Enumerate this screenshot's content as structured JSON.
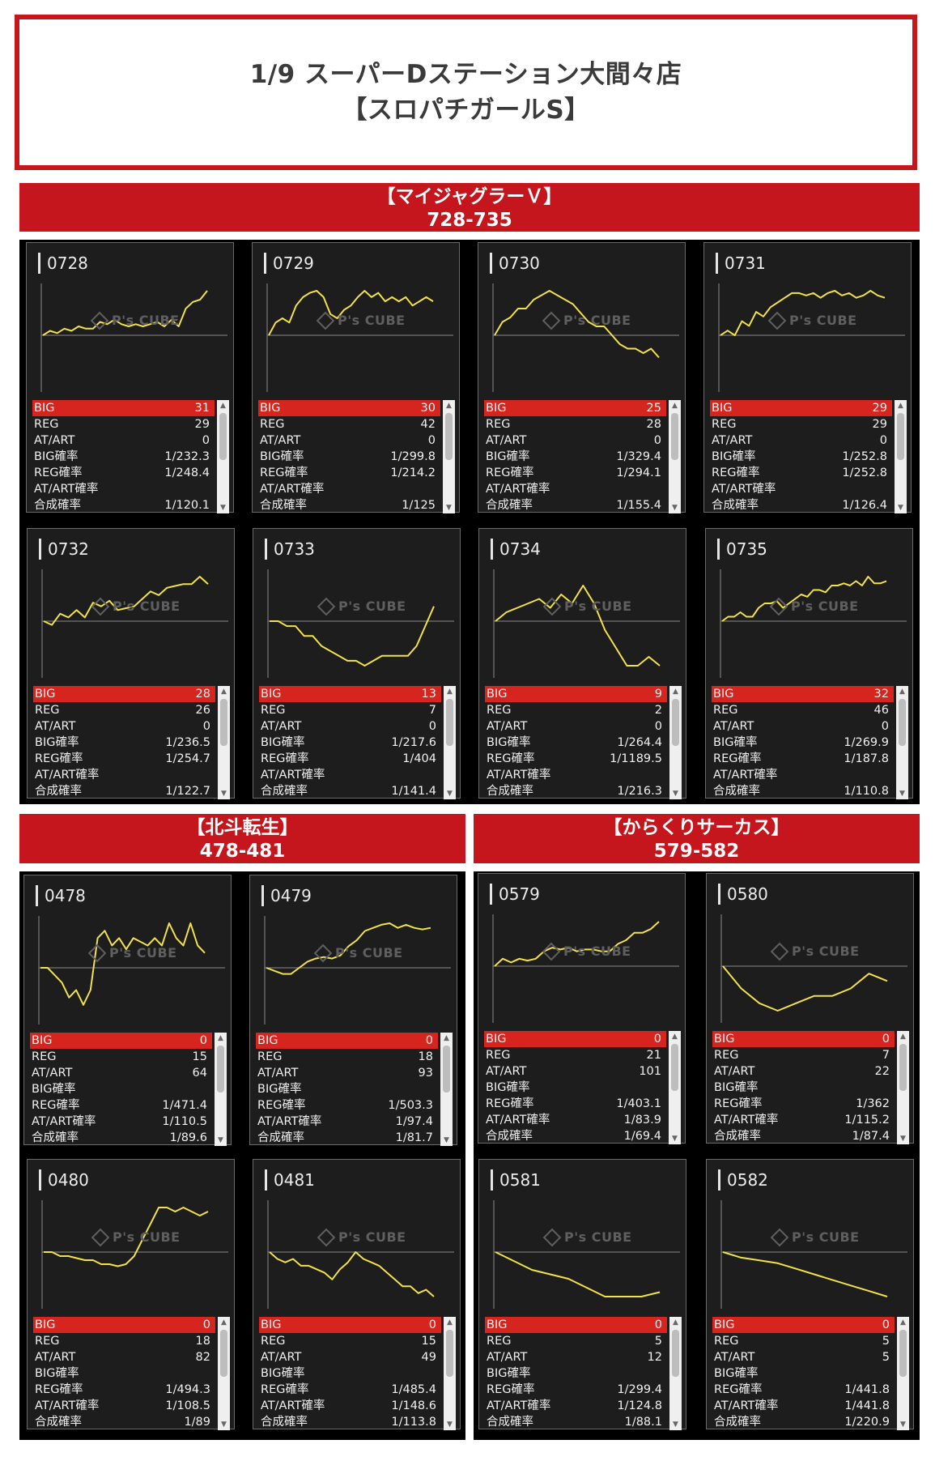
{
  "page_title": {
    "line1": "1/9 スーパーDステーション大間々店",
    "line2": "【スロパチガールS】"
  },
  "stat_labels": [
    "BIG",
    "REG",
    "AT/ART",
    "BIG確率",
    "REG確率",
    "AT/ART確率",
    "合成確率"
  ],
  "watermark": "P's CUBE",
  "colors": {
    "accent": "#c4161c",
    "big_row": "#d6251f",
    "chart_line": "#f2e24a",
    "panel_bg": "#1d1d1d"
  },
  "sections": [
    {
      "name": "【マイジャグラーＶ】",
      "range": "728-735",
      "machines": [
        {
          "number": "0728",
          "stats": [
            "31",
            "29",
            "0",
            "1/232.3",
            "1/248.4",
            "",
            "1/120.1"
          ],
          "graph": [
            0,
            1,
            0.5,
            1.5,
            1,
            2,
            1.5,
            1.5,
            3,
            2.5,
            3.5,
            2.5,
            2,
            2.5,
            2,
            2.5,
            3,
            2,
            3.5,
            2,
            6,
            7.5,
            8,
            10
          ]
        },
        {
          "number": "0729",
          "stats": [
            "30",
            "42",
            "0",
            "1/299.8",
            "1/214.2",
            "",
            "1/125"
          ],
          "graph": [
            0,
            3,
            4,
            3,
            7,
            9,
            10,
            10.5,
            9,
            5,
            4,
            6,
            7,
            9,
            10.5,
            9,
            10,
            8,
            9,
            8,
            9,
            7,
            8,
            9,
            8
          ]
        },
        {
          "number": "0730",
          "stats": [
            "25",
            "28",
            "0",
            "1/329.4",
            "1/294.1",
            "",
            "1/155.4"
          ],
          "graph": [
            0,
            3,
            4,
            6,
            6,
            8,
            9,
            10,
            9,
            8,
            7,
            5,
            3,
            2,
            2,
            0,
            -2,
            -3,
            -3,
            -4,
            -3,
            -5
          ]
        },
        {
          "number": "0731",
          "stats": [
            "29",
            "29",
            "0",
            "1/252.8",
            "1/252.8",
            "",
            "1/126.4"
          ],
          "graph": [
            0,
            1,
            0,
            3,
            2,
            5,
            4,
            6,
            7,
            8,
            9,
            9,
            8.5,
            9,
            8,
            9,
            9.5,
            8.5,
            9,
            8,
            8.5,
            9.5,
            8.5,
            8
          ]
        }
      ]
    },
    {
      "name": "【マイジャグラーＶ】",
      "range": "728-735",
      "machines": [
        {
          "number": "0732",
          "stats": [
            "28",
            "26",
            "0",
            "1/236.5",
            "1/254.7",
            "",
            "1/122.7"
          ],
          "graph": [
            0,
            -1,
            2,
            1,
            3,
            1,
            5,
            4,
            5.5,
            3,
            3.5,
            4,
            6,
            8,
            7,
            9,
            9.5,
            10,
            10,
            12,
            10
          ]
        },
        {
          "number": "0733",
          "stats": [
            "13",
            "7",
            "0",
            "1/217.6",
            "1/404",
            "",
            "1/141.4"
          ],
          "graph": [
            0,
            0,
            -1,
            -1,
            -3,
            -3,
            -5,
            -6,
            -7,
            -8,
            -8,
            -9,
            -8,
            -7,
            -7,
            -7,
            -7,
            -5,
            -1,
            3
          ]
        },
        {
          "number": "0734",
          "stats": [
            "9",
            "2",
            "0",
            "1/264.4",
            "1/1189.5",
            "",
            "1/216.3"
          ],
          "graph": [
            0,
            1,
            1.5,
            2,
            2.5,
            1.5,
            3,
            2,
            4,
            2,
            -1,
            -3,
            -5,
            -5,
            -4,
            -5
          ]
        },
        {
          "number": "0735",
          "stats": [
            "32",
            "46",
            "0",
            "1/269.9",
            "1/187.8",
            "",
            "1/110.8"
          ],
          "graph": [
            0,
            1,
            1,
            2,
            1,
            1,
            3,
            4,
            4,
            4.5,
            3,
            4,
            5,
            6,
            5.5,
            7,
            7,
            6.5,
            8,
            8,
            8.5,
            8,
            9,
            8,
            10,
            8.5,
            8.5,
            9
          ]
        }
      ]
    },
    {
      "name": "【北斗転生】",
      "range": "478-481",
      "machines": [
        {
          "number": "0478",
          "stats": [
            "0",
            "15",
            "64",
            "",
            "1/471.4",
            "1/110.5",
            "1/89.6"
          ],
          "graph": [
            0,
            0,
            -1,
            -2,
            -4,
            -3,
            -5,
            -3,
            4,
            5,
            3,
            4,
            2.5,
            4,
            3.5,
            3,
            4,
            3,
            6,
            4,
            3,
            6,
            3,
            2
          ]
        },
        {
          "number": "0479",
          "stats": [
            "0",
            "18",
            "93",
            "",
            "1/503.3",
            "1/97.4",
            "1/81.7"
          ],
          "graph": [
            0,
            -1,
            -2,
            -2,
            0,
            2,
            3,
            3.5,
            3,
            4,
            7,
            9,
            12,
            13,
            14,
            14.5,
            13,
            14,
            13,
            12.5,
            13
          ]
        },
        {
          "number": "0480",
          "stats": [
            "0",
            "18",
            "82",
            "",
            "1/494.3",
            "1/108.5",
            "1/89"
          ],
          "graph": [
            0,
            0,
            -1,
            -1,
            -1.5,
            -2,
            -2,
            -3,
            -3,
            -3.5,
            -3,
            -1,
            3,
            7,
            11,
            11,
            10,
            11,
            10,
            9,
            10
          ]
        },
        {
          "number": "0481",
          "stats": [
            "0",
            "15",
            "49",
            "",
            "1/485.4",
            "1/148.6",
            "1/113.8"
          ],
          "graph": [
            0,
            -2,
            -3,
            -2,
            -4,
            -4,
            -5,
            -6,
            -8,
            -5,
            -3,
            0,
            -2,
            -3,
            -4,
            -6,
            -8,
            -10,
            -10,
            -12,
            -11,
            -13
          ]
        }
      ]
    },
    {
      "name": "【からくりサーカス】",
      "range": "579-582",
      "machines": [
        {
          "number": "0579",
          "stats": [
            "0",
            "21",
            "101",
            "",
            "1/403.1",
            "1/83.9",
            "1/69.4"
          ],
          "graph": [
            0,
            2,
            1,
            2,
            1.5,
            2,
            4,
            5,
            4.5,
            5,
            4,
            4.5,
            4.5,
            4,
            4,
            6,
            7,
            9,
            9,
            10,
            12
          ]
        },
        {
          "number": "0580",
          "stats": [
            "0",
            "7",
            "22",
            "",
            "1/362",
            "1/115.2",
            "1/87.4"
          ],
          "graph": [
            0,
            -3,
            -5,
            -6,
            -5,
            -4,
            -4,
            -3,
            -1,
            -2
          ]
        },
        {
          "number": "0581",
          "stats": [
            "0",
            "5",
            "12",
            "",
            "1/299.4",
            "1/124.8",
            "1/88.1"
          ],
          "graph": [
            0,
            -1,
            -2,
            -2.5,
            -3,
            -4,
            -5,
            -5,
            -5,
            -4.5
          ]
        },
        {
          "number": "0582",
          "stats": [
            "0",
            "5",
            "5",
            "",
            "1/441.8",
            "1/441.8",
            "1/220.9"
          ],
          "graph": [
            0,
            -1,
            -1.5,
            -2,
            -3,
            -4,
            -5,
            -6,
            -7,
            -8
          ]
        }
      ]
    }
  ]
}
